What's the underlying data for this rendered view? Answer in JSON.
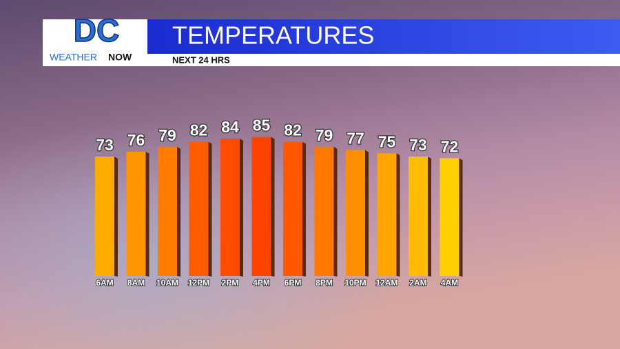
{
  "logo": {
    "letters": "DC",
    "line1": "WEATHER",
    "line2": "NOW"
  },
  "chart_data": {
    "type": "bar",
    "title": "TEMPERATURES",
    "subtitle": "NEXT 24 HRS",
    "categories": [
      "6AM",
      "8AM",
      "10AM",
      "12PM",
      "2PM",
      "4PM",
      "6PM",
      "8PM",
      "10PM",
      "12AM",
      "2AM",
      "4AM"
    ],
    "values": [
      73,
      76,
      79,
      82,
      84,
      85,
      82,
      79,
      77,
      75,
      73,
      72
    ],
    "colors": [
      "#ffac00",
      "#ff9600",
      "#ff7c00",
      "#ff5c00",
      "#ff4c00",
      "#ff4400",
      "#ff5800",
      "#ff7800",
      "#ff8e00",
      "#ffa400",
      "#ffbc00",
      "#ffcf00"
    ]
  }
}
